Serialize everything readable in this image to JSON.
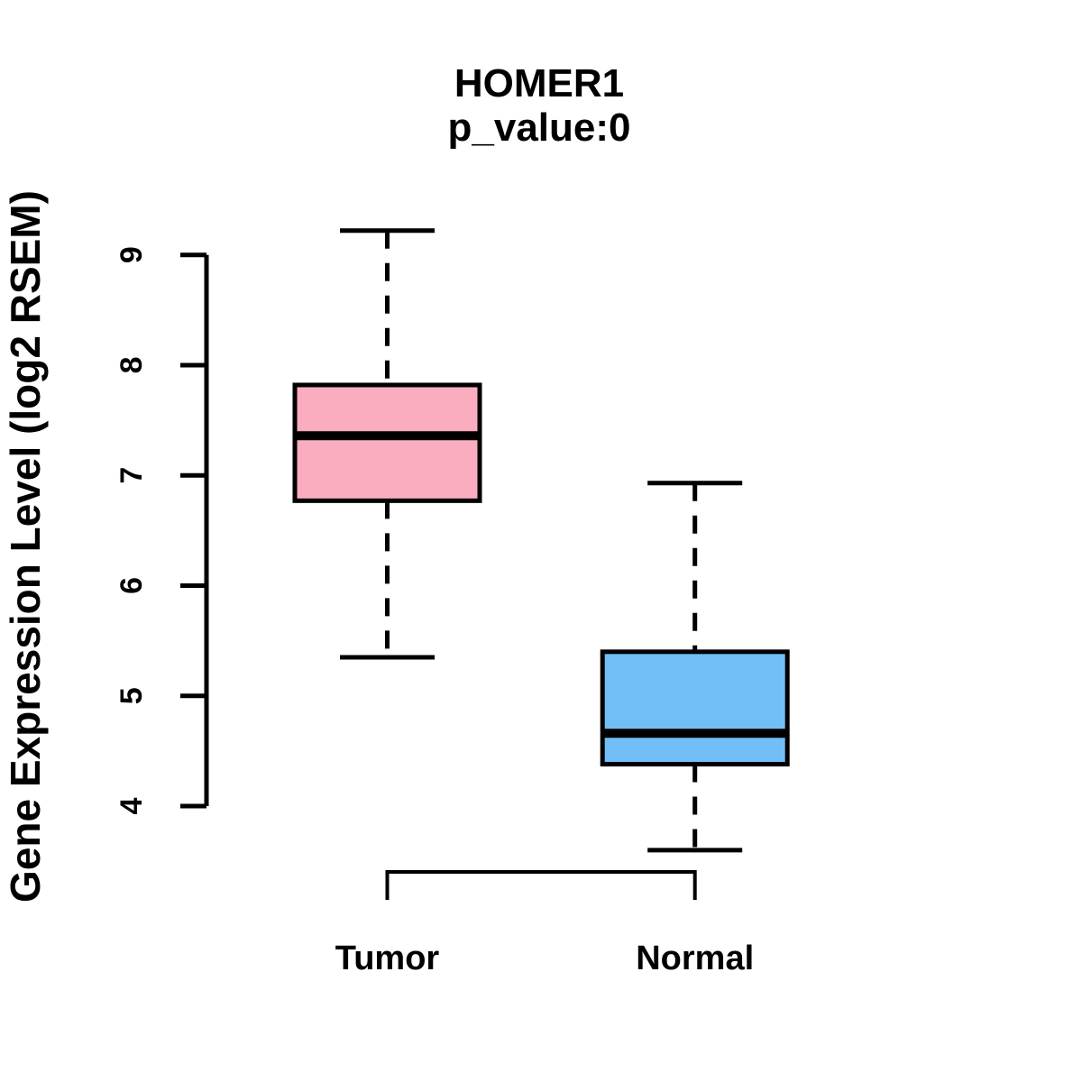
{
  "chart_data": {
    "type": "boxplot",
    "title": "HOMER1",
    "subtitle": "p_value:0",
    "ylabel": "Gene Expression Level (log2 RSEM)",
    "xlabel": "",
    "categories": [
      "Tumor",
      "Normal"
    ],
    "y_ticks": [
      4,
      5,
      6,
      7,
      8,
      9
    ],
    "ylim": [
      3.6,
      9.22
    ],
    "grid": false,
    "series": [
      {
        "name": "Tumor",
        "lower_whisker": 5.35,
        "q1": 6.77,
        "median": 7.36,
        "q3": 7.82,
        "upper_whisker": 9.22,
        "fill_color": "#FBADC0"
      },
      {
        "name": "Normal",
        "lower_whisker": 3.6,
        "q1": 4.38,
        "median": 4.66,
        "q3": 5.4,
        "upper_whisker": 6.93,
        "fill_color": "#72BEF7"
      }
    ],
    "comparison_bracket": {
      "from": "Tumor",
      "to": "Normal"
    },
    "colors": {
      "box_border": "#000000",
      "median_line": "#000000",
      "whisker": "#000000",
      "axis": "#000000",
      "background": "#FFFFFF"
    }
  }
}
